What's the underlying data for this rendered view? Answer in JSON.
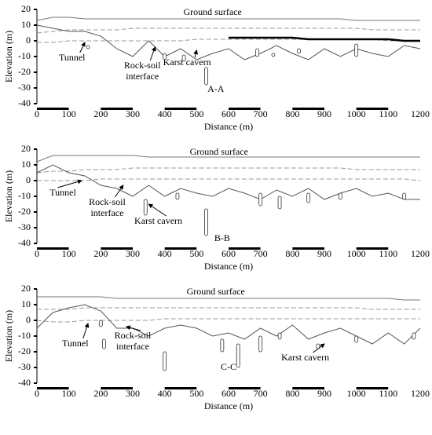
{
  "chart_data": [
    {
      "type": "line",
      "xlabel": "Distance (m)",
      "ylabel": "Elevation (m)",
      "annotations": [
        "Ground surface",
        "Tunnel",
        "Rock-soil",
        "interface",
        "Karst cavern",
        "A-A"
      ],
      "x": [
        0,
        50,
        100,
        150,
        200,
        250,
        300,
        350,
        400,
        450,
        500,
        550,
        600,
        650,
        700,
        750,
        800,
        850,
        900,
        950,
        1000,
        1050,
        1100,
        1150,
        1200
      ],
      "series": [
        {
          "color": "#777777",
          "values": [
            13,
            15,
            15,
            14,
            14,
            14,
            14,
            14,
            14,
            14,
            14,
            14,
            14,
            14,
            14,
            14,
            14,
            14,
            14,
            14,
            13,
            13,
            13,
            13,
            13
          ]
        },
        {
          "color": "#999999",
          "dash": true,
          "values": [
            5,
            6,
            7,
            7,
            7,
            7,
            8,
            8,
            8,
            8,
            8,
            8,
            8,
            8,
            8,
            8,
            8,
            8,
            8,
            8,
            8,
            7,
            7,
            7,
            7
          ]
        },
        {
          "color": "#999999",
          "dash": true,
          "values": [
            -1,
            -1,
            0,
            0,
            0,
            0,
            0,
            0,
            0,
            0,
            1,
            1,
            1,
            1,
            1,
            1,
            1,
            1,
            1,
            1,
            1,
            1,
            0,
            0,
            0
          ]
        },
        {
          "color": "#555555",
          "values": [
            10,
            8,
            6,
            6,
            3,
            -5,
            -10,
            0,
            -10,
            -5,
            -12,
            -8,
            -5,
            -12,
            -8,
            -3,
            -8,
            -12,
            -5,
            -10,
            -5,
            -8,
            -10,
            -3,
            -5
          ]
        },
        {
          "color": "#000000",
          "width": 2.5,
          "values": [
            null,
            null,
            null,
            null,
            null,
            null,
            null,
            null,
            null,
            null,
            null,
            null,
            2,
            2,
            2,
            2,
            2,
            1,
            1,
            1,
            1,
            1,
            1,
            0,
            0
          ]
        }
      ],
      "caverns": {
        "x": [
          160,
          400,
          460,
          530,
          690,
          740,
          820,
          1000
        ],
        "top": [
          -3,
          -8,
          -9,
          -17,
          -5,
          -8,
          -5,
          -2
        ],
        "bottom": [
          -5,
          -12,
          -13,
          -28,
          -10,
          -10,
          -8,
          -10
        ]
      },
      "xlim": [
        0,
        1200
      ],
      "ylim": [
        -40,
        20
      ],
      "xticks": [
        0,
        100,
        200,
        300,
        400,
        500,
        600,
        700,
        800,
        900,
        1000,
        1100,
        1200
      ],
      "yticks": [
        -40,
        -30,
        -20,
        -10,
        0,
        10,
        20
      ]
    },
    {
      "type": "line",
      "xlabel": "Distance (m)",
      "ylabel": "Elevation (m)",
      "annotations": [
        "Ground surface",
        "Tunnel",
        "Rock-soil",
        "interface",
        "Karst cavern",
        "B-B"
      ],
      "x": [
        0,
        50,
        100,
        150,
        200,
        250,
        300,
        350,
        400,
        450,
        500,
        550,
        600,
        650,
        700,
        750,
        800,
        850,
        900,
        950,
        1000,
        1050,
        1100,
        1150,
        1200
      ],
      "series": [
        {
          "color": "#777777",
          "values": [
            12,
            16,
            16,
            16,
            16,
            16,
            16,
            15,
            15,
            15,
            15,
            15,
            15,
            15,
            15,
            15,
            15,
            15,
            15,
            15,
            15,
            15,
            15,
            15,
            15
          ]
        },
        {
          "color": "#999999",
          "dash": true,
          "values": [
            5,
            6,
            6,
            7,
            7,
            7,
            8,
            8,
            8,
            8,
            8,
            8,
            8,
            8,
            8,
            8,
            8,
            8,
            8,
            8,
            7,
            7,
            7,
            7,
            7
          ]
        },
        {
          "color": "#999999",
          "dash": true,
          "values": [
            0,
            0,
            0,
            0,
            1,
            1,
            1,
            1,
            1,
            1,
            1,
            1,
            1,
            1,
            1,
            1,
            1,
            1,
            1,
            1,
            1,
            1,
            1,
            1,
            0
          ]
        },
        {
          "color": "#555555",
          "values": [
            5,
            10,
            5,
            3,
            -3,
            -5,
            -10,
            -3,
            -10,
            -5,
            -8,
            -10,
            -5,
            -8,
            -12,
            -6,
            -10,
            -5,
            -12,
            -8,
            -5,
            -10,
            -8,
            -12,
            -12
          ]
        }
      ],
      "caverns": {
        "x": [
          340,
          440,
          530,
          700,
          760,
          850,
          950,
          1150
        ],
        "top": [
          -12,
          -8,
          -18,
          -8,
          -10,
          -8,
          -8,
          -8
        ],
        "bottom": [
          -22,
          -12,
          -35,
          -16,
          -18,
          -14,
          -12,
          -12
        ]
      },
      "xlim": [
        0,
        1200
      ],
      "ylim": [
        -40,
        20
      ],
      "xticks": [
        0,
        100,
        200,
        300,
        400,
        500,
        600,
        700,
        800,
        900,
        1000,
        1100,
        1200
      ],
      "yticks": [
        -40,
        -30,
        -20,
        -10,
        0,
        10,
        20
      ]
    },
    {
      "type": "line",
      "xlabel": "Distance (m)",
      "ylabel": "Elevation (m)",
      "annotations": [
        "Ground surface",
        "Tunnel",
        "Rock-soil",
        "interface",
        "Karst cavern",
        "C-C"
      ],
      "x": [
        0,
        50,
        100,
        150,
        200,
        250,
        300,
        350,
        400,
        450,
        500,
        550,
        600,
        650,
        700,
        750,
        800,
        850,
        900,
        950,
        1000,
        1050,
        1100,
        1150,
        1200
      ],
      "series": [
        {
          "color": "#777777",
          "values": [
            15,
            15,
            15,
            15,
            15,
            14,
            14,
            14,
            14,
            14,
            14,
            14,
            14,
            14,
            14,
            14,
            14,
            14,
            14,
            14,
            14,
            14,
            14,
            13,
            13
          ]
        },
        {
          "color": "#999999",
          "dash": true,
          "values": [
            7,
            7,
            7,
            8,
            8,
            8,
            8,
            8,
            8,
            8,
            8,
            8,
            8,
            8,
            8,
            8,
            8,
            8,
            8,
            8,
            8,
            7,
            7,
            7,
            7
          ]
        },
        {
          "color": "#999999",
          "dash": true,
          "values": [
            0,
            -1,
            -1,
            0,
            0,
            0,
            0,
            0,
            1,
            1,
            1,
            1,
            1,
            1,
            1,
            1,
            1,
            1,
            1,
            1,
            1,
            1,
            1,
            1,
            1
          ]
        },
        {
          "color": "#555555",
          "values": [
            -5,
            5,
            8,
            10,
            6,
            -5,
            -5,
            -10,
            -5,
            -3,
            -5,
            -10,
            -8,
            -12,
            -5,
            -10,
            -3,
            -12,
            -8,
            -5,
            -10,
            -15,
            -8,
            -15,
            -5
          ]
        }
      ],
      "caverns": {
        "x": [
          200,
          210,
          400,
          580,
          630,
          700,
          760,
          880,
          1000,
          1180
        ],
        "top": [
          0,
          -12,
          -20,
          -12,
          -15,
          -10,
          -8,
          -15,
          -10,
          -8
        ],
        "bottom": [
          -4,
          -18,
          -32,
          -20,
          -30,
          -20,
          -12,
          -18,
          -14,
          -12
        ]
      },
      "xlim": [
        0,
        1200
      ],
      "ylim": [
        -40,
        20
      ],
      "xticks": [
        0,
        100,
        200,
        300,
        400,
        500,
        600,
        700,
        800,
        900,
        1000,
        1100,
        1200
      ],
      "yticks": [
        -40,
        -30,
        -20,
        -10,
        0,
        10,
        20
      ]
    }
  ]
}
